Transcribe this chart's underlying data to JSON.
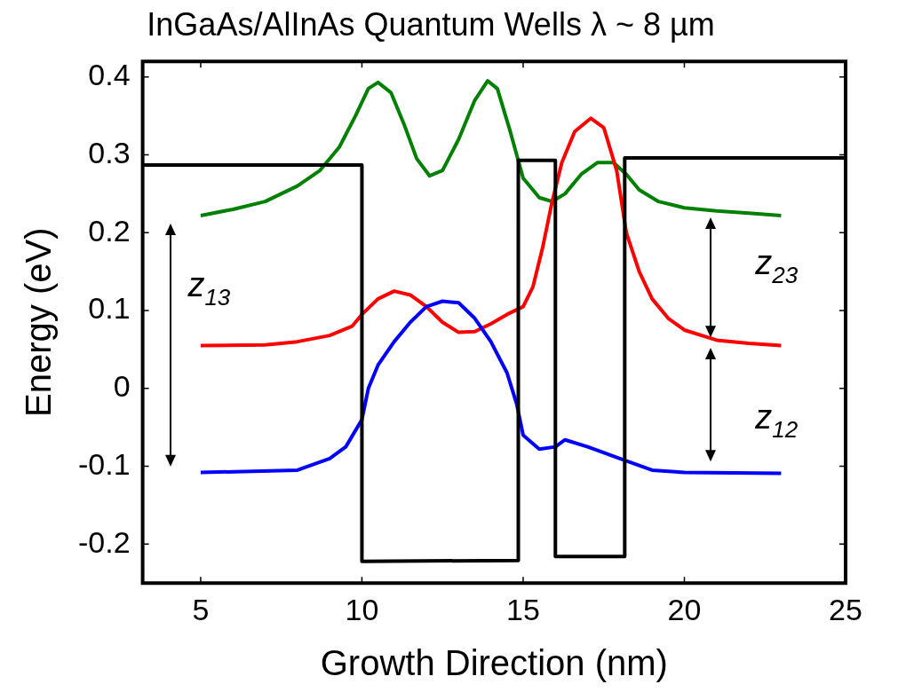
{
  "chart_data": {
    "type": "line",
    "title": "InGaAs/AlInAs Quantum Wells λ ~ 8 µm",
    "xlabel": "Growth Direction (nm)",
    "ylabel": "Energy (eV)",
    "xlim": [
      3.2,
      25
    ],
    "ylim": [
      -0.25,
      0.42
    ],
    "xticks": [
      5,
      10,
      15,
      20,
      25
    ],
    "yticks": [
      -0.2,
      -0.1,
      0,
      0.1,
      0.2,
      0.3,
      0.4
    ],
    "grid": false,
    "legend": false,
    "marker": "none",
    "line_style": "solid",
    "annotations": [
      "z$_{13}$",
      "z$_{23}$",
      "z$_{12}$"
    ],
    "series": [
      {
        "color": "#000000",
        "x": [
          3.2,
          10,
          10,
          14.85,
          14.85,
          16,
          16,
          18.15,
          18.15,
          25
        ],
        "values": [
          0.287,
          0.287,
          -0.222,
          -0.221,
          0.293,
          0.293,
          -0.216,
          -0.216,
          0.296,
          0.296
        ]
      },
      {
        "color": "#0000ff",
        "x": [
          5,
          8,
          9,
          9.5,
          10,
          10.2,
          10.5,
          11,
          11.5,
          12,
          12.5,
          13,
          13.5,
          14,
          14.5,
          14.8,
          15,
          15.5,
          16,
          16.3,
          17,
          18,
          19,
          20,
          23
        ],
        "values": [
          -0.108,
          -0.105,
          -0.09,
          -0.075,
          -0.04,
          0.0,
          0.03,
          0.06,
          0.085,
          0.105,
          0.112,
          0.11,
          0.09,
          0.06,
          0.02,
          -0.02,
          -0.06,
          -0.078,
          -0.075,
          -0.066,
          -0.075,
          -0.09,
          -0.105,
          -0.108,
          -0.109
        ]
      },
      {
        "color": "#ff0000",
        "x": [
          5,
          7,
          8,
          9,
          9.7,
          10,
          10.5,
          11,
          11.5,
          12,
          12.5,
          13,
          13.5,
          14,
          14.5,
          15,
          15.3,
          15.6,
          15.9,
          16.2,
          16.6,
          17.1,
          17.5,
          17.9,
          18.2,
          18.6,
          19,
          19.5,
          20,
          21,
          22,
          23
        ],
        "values": [
          0.055,
          0.056,
          0.06,
          0.068,
          0.08,
          0.095,
          0.115,
          0.125,
          0.12,
          0.105,
          0.085,
          0.072,
          0.073,
          0.083,
          0.095,
          0.105,
          0.13,
          0.18,
          0.24,
          0.29,
          0.33,
          0.347,
          0.335,
          0.28,
          0.2,
          0.15,
          0.115,
          0.09,
          0.075,
          0.062,
          0.058,
          0.055
        ]
      },
      {
        "color": "#008000",
        "x": [
          5,
          6,
          7,
          8,
          8.7,
          9.3,
          9.8,
          10.2,
          10.5,
          10.9,
          11.3,
          11.7,
          12.1,
          12.5,
          13,
          13.5,
          13.9,
          14.2,
          14.6,
          15,
          15.5,
          15.9,
          16.3,
          16.8,
          17.3,
          17.8,
          18.2,
          18.6,
          19.2,
          20,
          21,
          22,
          23
        ],
        "values": [
          0.222,
          0.23,
          0.24,
          0.26,
          0.28,
          0.31,
          0.35,
          0.385,
          0.393,
          0.38,
          0.34,
          0.295,
          0.273,
          0.28,
          0.32,
          0.37,
          0.395,
          0.385,
          0.33,
          0.27,
          0.245,
          0.24,
          0.25,
          0.275,
          0.29,
          0.29,
          0.275,
          0.255,
          0.24,
          0.232,
          0.228,
          0.225,
          0.222
        ]
      }
    ]
  }
}
